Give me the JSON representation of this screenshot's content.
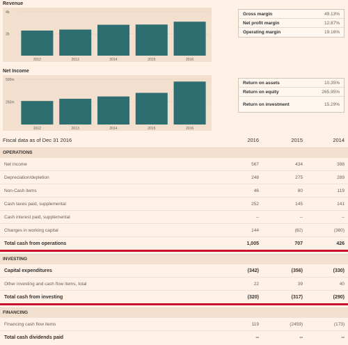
{
  "charts": [
    {
      "title": "Revenue",
      "type": "bar",
      "categories": [
        "2012",
        "2013",
        "2014",
        "2015",
        "2016"
      ],
      "values": [
        2.29,
        2.38,
        2.82,
        2.84,
        3.1
      ],
      "y_ticks": [
        "4b",
        "2b"
      ],
      "ylim": [
        0,
        4
      ],
      "bar_color": "#2e6e70",
      "ratios": [
        {
          "label": "Gross margin",
          "value": "49.13%"
        },
        {
          "label": "Net profit margin",
          "value": "12.87%"
        },
        {
          "label": "Operating margin",
          "value": "19.16%"
        }
      ]
    },
    {
      "title": "Net Income",
      "type": "bar",
      "categories": [
        "2012",
        "2013",
        "2014",
        "2015",
        "2016"
      ],
      "values": [
        260,
        285,
        310,
        350,
        475
      ],
      "y_ticks": [
        "500m",
        "250m"
      ],
      "ylim": [
        0,
        500
      ],
      "bar_color": "#2e6e70",
      "ratios": [
        {
          "label": "Return on assets",
          "value": "10.35%"
        },
        {
          "label": "Return on equity",
          "value": "265.95%"
        },
        {
          "label": "Return on investment",
          "value": "15.29%"
        }
      ]
    }
  ],
  "chart_data": [
    {
      "type": "bar",
      "title": "Revenue",
      "categories": [
        "2012",
        "2013",
        "2014",
        "2015",
        "2016"
      ],
      "values": [
        2.29,
        2.38,
        2.82,
        2.84,
        3.1
      ],
      "ylim": [
        0,
        4
      ]
    },
    {
      "type": "bar",
      "title": "Net Income",
      "categories": [
        "2012",
        "2013",
        "2014",
        "2015",
        "2016"
      ],
      "values": [
        260,
        285,
        310,
        350,
        475
      ],
      "ylim": [
        0,
        500
      ]
    }
  ],
  "table": {
    "caption": "Fiscal data as of Dec 31 2016",
    "years": [
      "2016",
      "2015",
      "2014"
    ],
    "sections": [
      {
        "title": "OPERATIONS",
        "rows": [
          {
            "label": "Net income",
            "values": [
              "567",
              "434",
              "398"
            ],
            "bold": false
          },
          {
            "label": "Depreciation/depletion",
            "values": [
              "248",
              "275",
              "289"
            ],
            "bold": false
          },
          {
            "label": "Non-Cash items",
            "values": [
              "46",
              "80",
              "119"
            ],
            "bold": false
          },
          {
            "label": "Cash taxes paid, supplemental",
            "values": [
              "252",
              "145",
              "141"
            ],
            "bold": false
          },
          {
            "label": "Cash interest paid, supplemental",
            "values": [
              "--",
              "--",
              "--"
            ],
            "bold": false
          },
          {
            "label": "Changes in working capital",
            "values": [
              "144",
              "(82)",
              "(380)"
            ],
            "bold": false
          },
          {
            "label": "Total cash from operations",
            "values": [
              "1,005",
              "707",
              "426"
            ],
            "bold": true
          }
        ]
      },
      {
        "title": "INVESTING",
        "rows": [
          {
            "label": "Capital expenditures",
            "values": [
              "(342)",
              "(356)",
              "(330)"
            ],
            "bold": true
          },
          {
            "label": "Other investing and cash flow items, total",
            "values": [
              "22",
              "39",
              "40"
            ],
            "bold": false
          },
          {
            "label": "Total cash from investing",
            "values": [
              "(320)",
              "(317)",
              "(290)"
            ],
            "bold": true
          }
        ]
      },
      {
        "title": "FINANCING",
        "rows": [
          {
            "label": "Financing cash flow items",
            "values": [
              "119",
              "(2459)",
              "(173)"
            ],
            "bold": false
          },
          {
            "label": "Total cash dividends paid",
            "values": [
              "--",
              "--",
              "--"
            ],
            "bold": true
          }
        ]
      }
    ]
  }
}
